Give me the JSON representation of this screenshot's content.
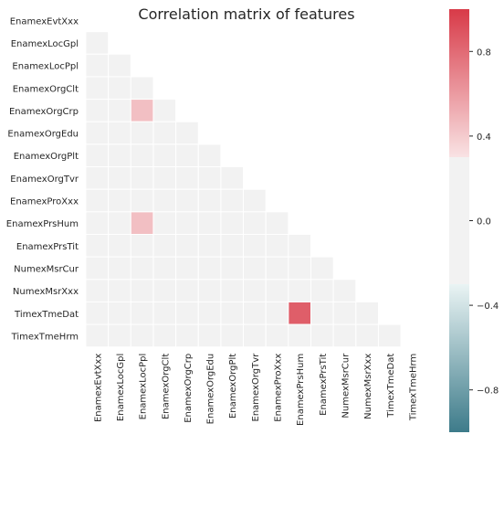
{
  "chart_data": {
    "type": "heatmap",
    "title": "Correlation matrix of features",
    "mask": "upper-triangle-and-diagonal",
    "labels": [
      "EnamexEvtXxx",
      "EnamexLocGpl",
      "EnamexLocPpl",
      "EnamexOrgClt",
      "EnamexOrgCrp",
      "EnamexOrgEdu",
      "EnamexOrgPlt",
      "EnamexOrgTvr",
      "EnamexProXxx",
      "EnamexPrsHum",
      "EnamexPrsTit",
      "NumexMsrCur",
      "NumexMsrXxx",
      "TimexTmeDat",
      "TimexTmeHrm"
    ],
    "values": [
      [
        null,
        null,
        null,
        null,
        null,
        null,
        null,
        null,
        null,
        null,
        null,
        null,
        null,
        null,
        null
      ],
      [
        0.0,
        null,
        null,
        null,
        null,
        null,
        null,
        null,
        null,
        null,
        null,
        null,
        null,
        null,
        null
      ],
      [
        0.0,
        0.0,
        null,
        null,
        null,
        null,
        null,
        null,
        null,
        null,
        null,
        null,
        null,
        null,
        null
      ],
      [
        0.0,
        0.0,
        0.0,
        null,
        null,
        null,
        null,
        null,
        null,
        null,
        null,
        null,
        null,
        null,
        null
      ],
      [
        0.0,
        0.0,
        0.45,
        0.0,
        null,
        null,
        null,
        null,
        null,
        null,
        null,
        null,
        null,
        null,
        null
      ],
      [
        0.0,
        0.0,
        0.0,
        0.0,
        0.0,
        null,
        null,
        null,
        null,
        null,
        null,
        null,
        null,
        null,
        null
      ],
      [
        0.0,
        0.0,
        0.0,
        0.0,
        0.0,
        0.0,
        null,
        null,
        null,
        null,
        null,
        null,
        null,
        null,
        null
      ],
      [
        0.0,
        0.0,
        0.0,
        0.0,
        0.0,
        0.0,
        0.0,
        null,
        null,
        null,
        null,
        null,
        null,
        null,
        null
      ],
      [
        0.0,
        0.0,
        0.0,
        0.0,
        0.0,
        0.0,
        0.0,
        0.0,
        null,
        null,
        null,
        null,
        null,
        null,
        null
      ],
      [
        0.0,
        0.0,
        0.45,
        0.0,
        0.0,
        0.0,
        0.0,
        0.0,
        0.0,
        null,
        null,
        null,
        null,
        null,
        null
      ],
      [
        0.0,
        0.0,
        0.0,
        0.0,
        0.0,
        0.0,
        0.0,
        0.0,
        0.0,
        0.0,
        null,
        null,
        null,
        null,
        null
      ],
      [
        0.0,
        0.0,
        0.0,
        0.0,
        0.0,
        0.0,
        0.0,
        0.0,
        0.0,
        0.0,
        0.0,
        null,
        null,
        null,
        null
      ],
      [
        0.0,
        0.0,
        0.0,
        0.0,
        0.0,
        0.0,
        0.0,
        0.0,
        0.0,
        0.0,
        0.0,
        0.0,
        null,
        null,
        null
      ],
      [
        0.0,
        0.0,
        0.0,
        0.0,
        0.0,
        0.0,
        0.0,
        0.0,
        0.0,
        0.85,
        0.0,
        0.0,
        0.0,
        null,
        null
      ],
      [
        0.0,
        0.0,
        0.0,
        0.0,
        0.0,
        0.0,
        0.0,
        0.0,
        0.0,
        0.0,
        0.0,
        0.0,
        0.0,
        0.0,
        null
      ]
    ],
    "colorbar": {
      "range": [
        -1.0,
        1.0
      ],
      "ticks": [
        0.8,
        0.4,
        0.0,
        -0.4,
        -0.8
      ],
      "tick_labels": [
        "0.8",
        "0.4",
        "0.0",
        "−0.4",
        "−0.8"
      ],
      "neutral_band": [
        -0.3,
        0.3
      ]
    },
    "colors": {
      "negative_end": "#3d7b8a",
      "neutral": "#f2f2f2",
      "positive_end": "#d83a48",
      "grid_line": "#ffffff"
    }
  }
}
